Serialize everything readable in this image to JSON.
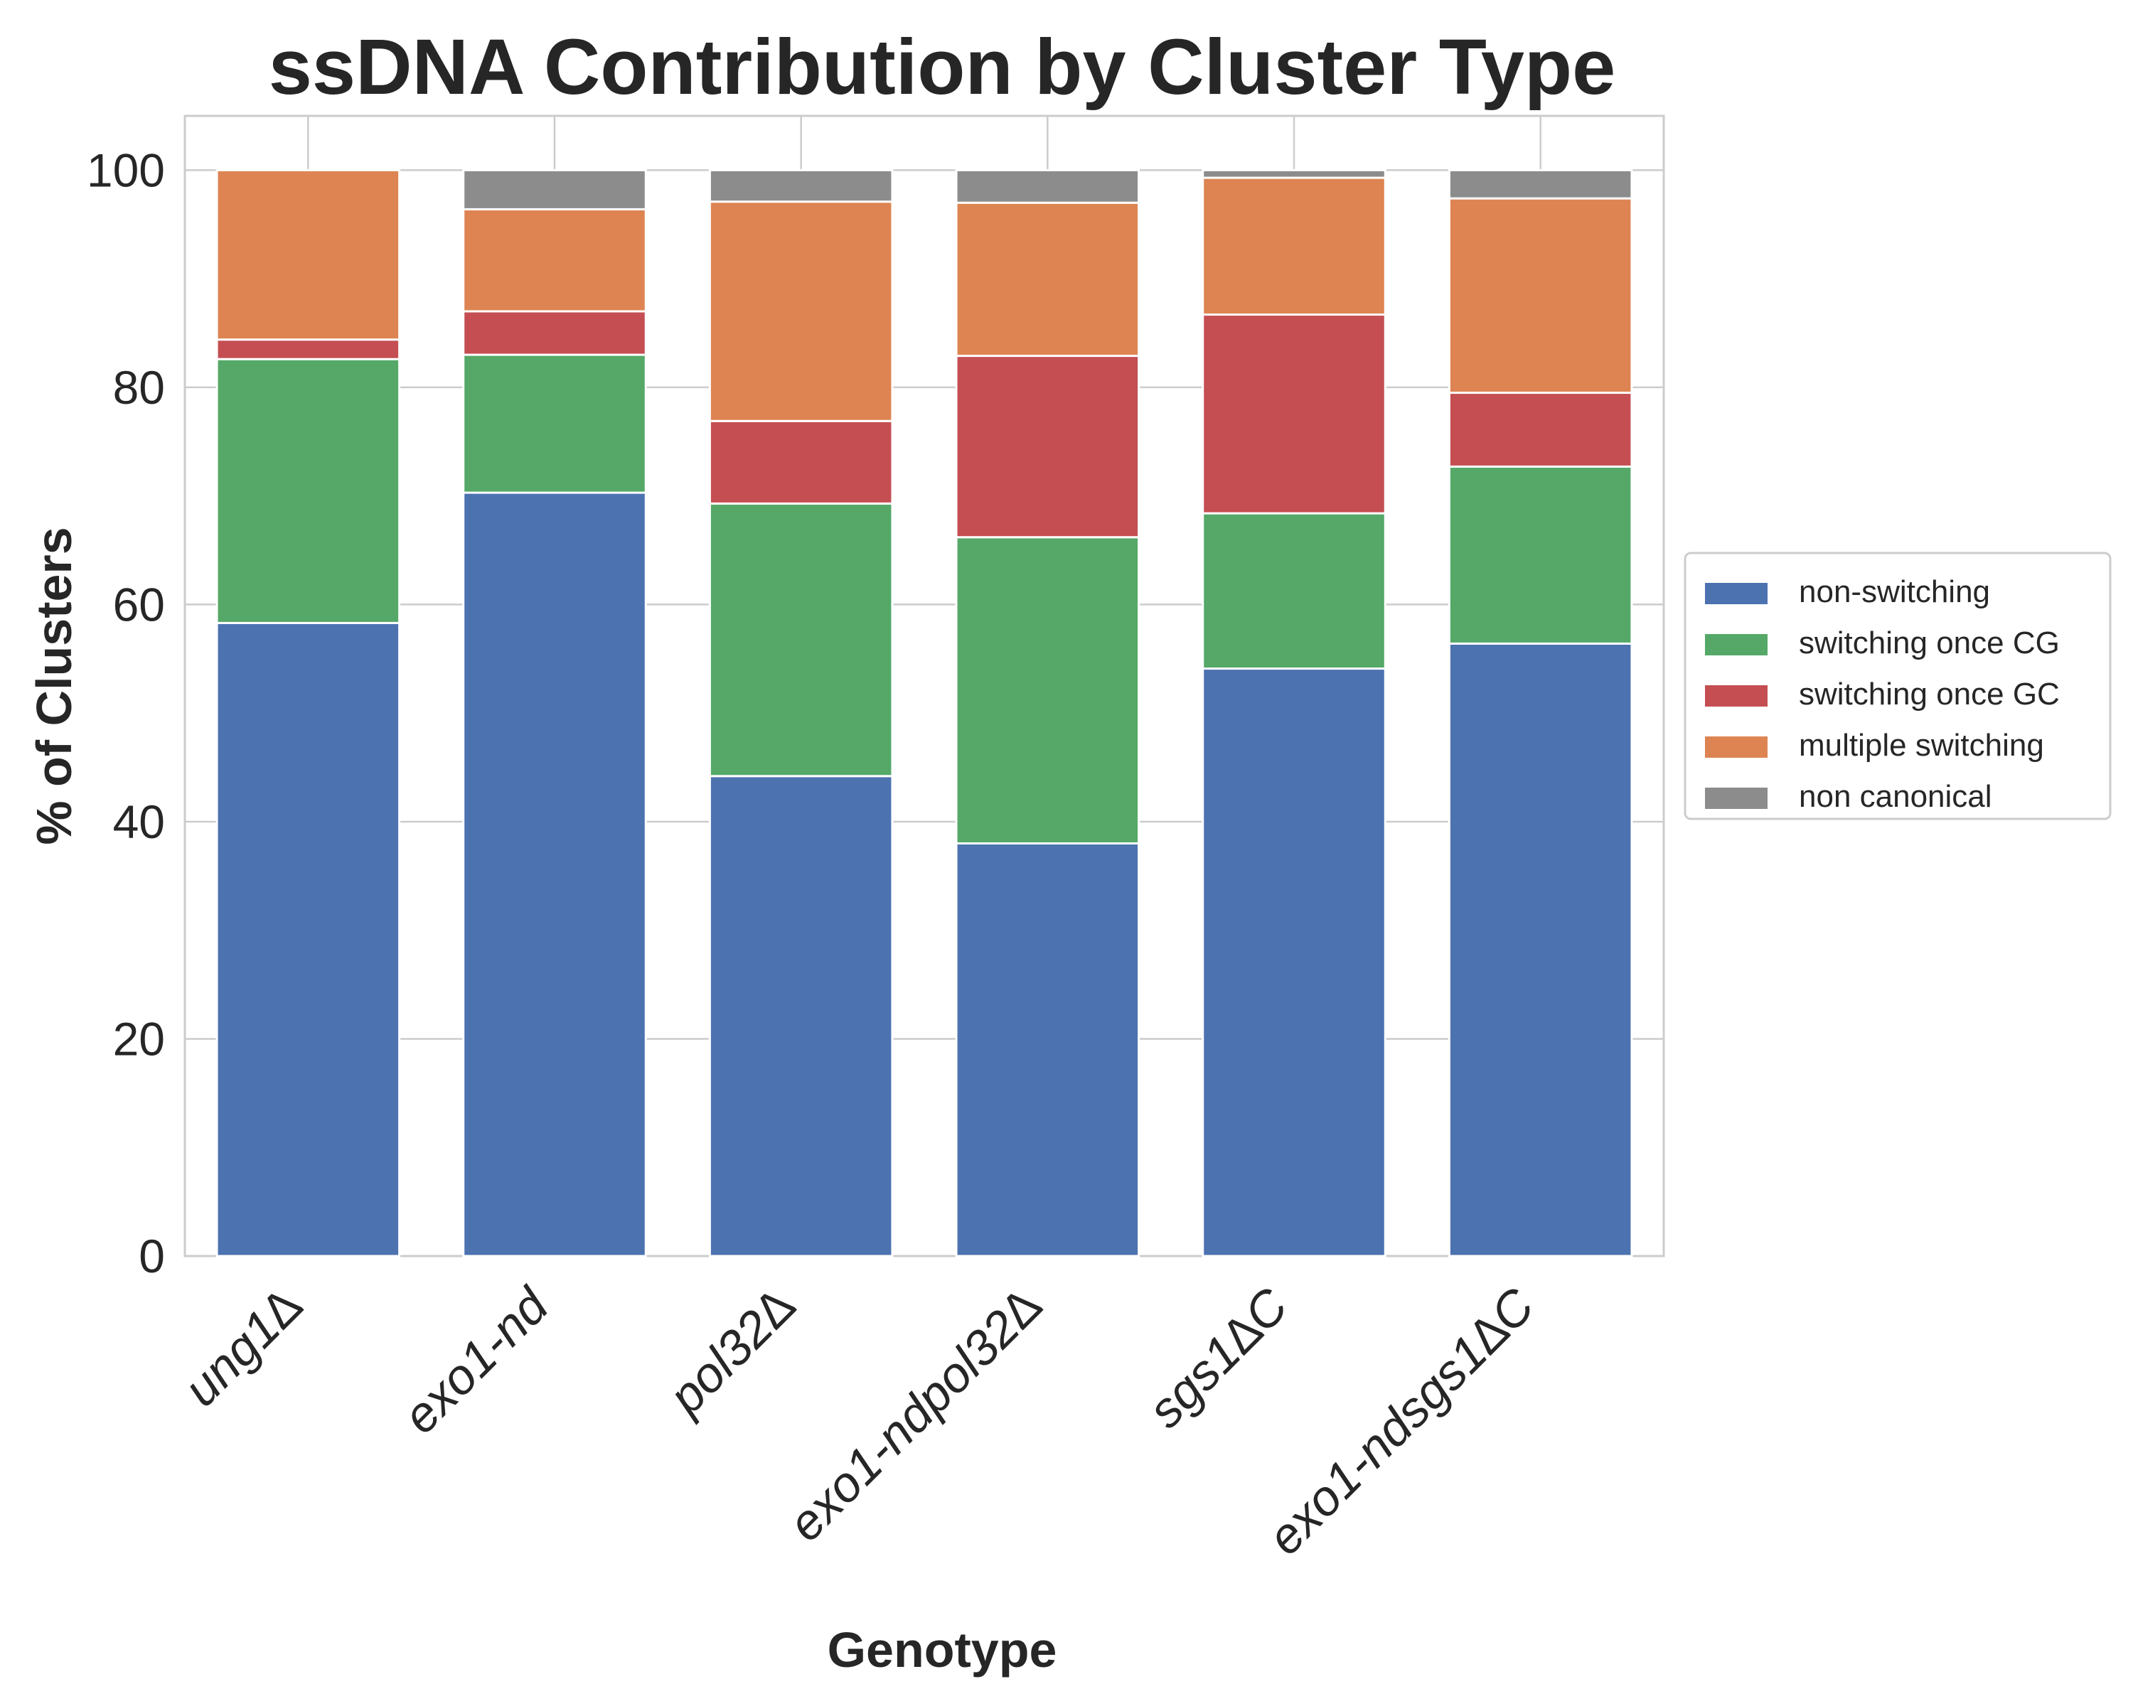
{
  "chart_data": {
    "type": "bar",
    "stacked": true,
    "title": "ssDNA Contribution by Cluster Type",
    "xlabel": "Genotype",
    "ylabel": "% of Clusters",
    "ylim": [
      0,
      105
    ],
    "yticks": [
      0,
      20,
      40,
      60,
      80,
      100
    ],
    "grid": true,
    "legend_position": "right",
    "categories": [
      "ung1∆",
      "exo1-nd",
      "pol32∆",
      "exo1-ndpol32∆",
      "sgs1∆C",
      "exo1-ndsgs1∆C"
    ],
    "series": [
      {
        "name": "non-switching",
        "color": "#4c72b0",
        "values": [
          58.3,
          70.3,
          44.2,
          38.0,
          54.1,
          56.4
        ]
      },
      {
        "name": "switching once CG",
        "color": "#55a868",
        "values": [
          24.3,
          12.7,
          25.1,
          28.2,
          14.3,
          16.3
        ]
      },
      {
        "name": "switching once GC",
        "color": "#c44e52",
        "values": [
          1.8,
          4.0,
          7.6,
          16.7,
          18.3,
          6.8
        ]
      },
      {
        "name": "multiple switching",
        "color": "#dd8452",
        "values": [
          15.6,
          9.4,
          20.2,
          14.1,
          12.6,
          17.9
        ]
      },
      {
        "name": "non canonical",
        "color": "#8c8c8c",
        "values": [
          0.0,
          3.6,
          2.9,
          3.0,
          0.7,
          2.6
        ]
      }
    ]
  }
}
